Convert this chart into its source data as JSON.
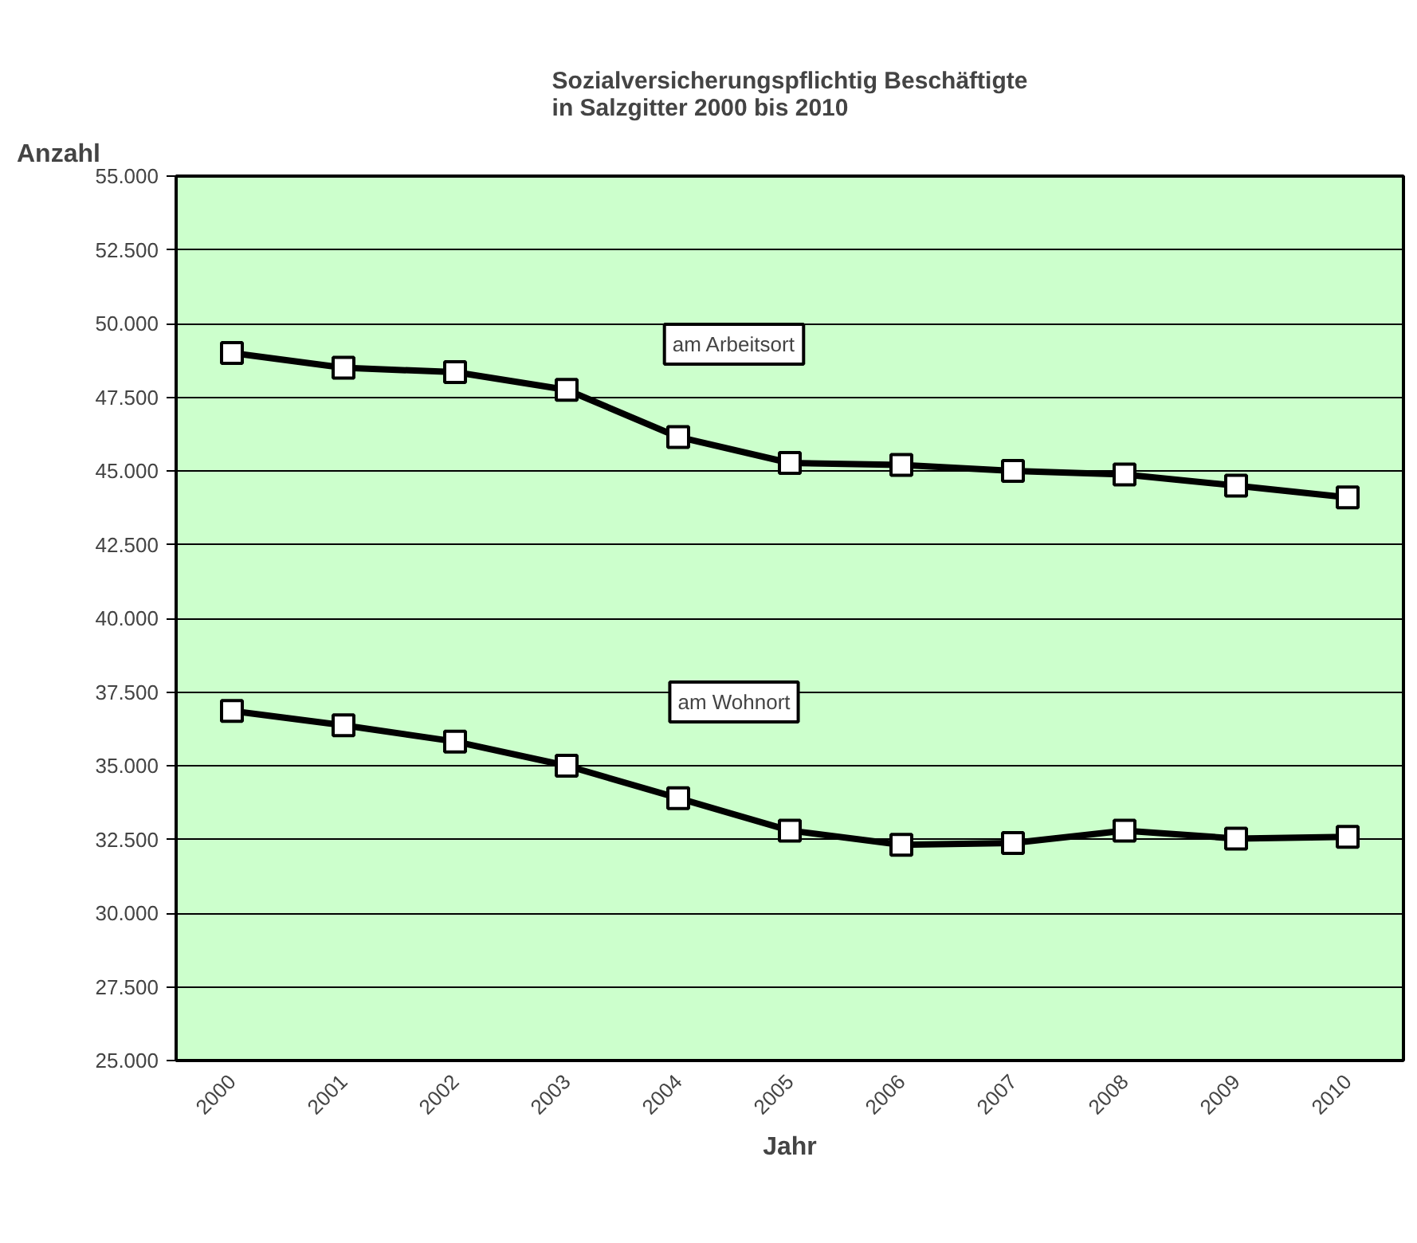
{
  "chart_data": {
    "type": "line",
    "title": "Sozialversicherungspflichtig Beschäftigte\nin Salzgitter 2000 bis 2010",
    "xlabel": "Jahr",
    "ylabel": "Anzahl",
    "categories": [
      "2000",
      "2001",
      "2002",
      "2003",
      "2004",
      "2005",
      "2006",
      "2007",
      "2008",
      "2009",
      "2010"
    ],
    "series": [
      {
        "name": "am Arbeitsort",
        "color": "#000000",
        "values": [
          49000,
          48500,
          48350,
          47750,
          46150,
          45270,
          45200,
          45000,
          44880,
          44500,
          44100
        ]
      },
      {
        "name": "am Wohnort",
        "color": "#000000",
        "values": [
          36860,
          36370,
          35820,
          35000,
          33900,
          32800,
          32320,
          32380,
          32800,
          32530,
          32590
        ]
      }
    ],
    "ylim": [
      25000,
      55000
    ],
    "yticks": [
      {
        "value": 25000,
        "label": "25.000"
      },
      {
        "value": 27500,
        "label": "27.500"
      },
      {
        "value": 30000,
        "label": "30.000"
      },
      {
        "value": 32500,
        "label": "32.500"
      },
      {
        "value": 35000,
        "label": "35.000"
      },
      {
        "value": 37500,
        "label": "37.500"
      },
      {
        "value": 40000,
        "label": "40.000"
      },
      {
        "value": 42500,
        "label": "42.500"
      },
      {
        "value": 45000,
        "label": "45.000"
      },
      {
        "value": 47500,
        "label": "47.500"
      },
      {
        "value": 50000,
        "label": "50.000"
      },
      {
        "value": 52500,
        "label": "52.500"
      },
      {
        "value": 55000,
        "label": "55.000"
      }
    ],
    "grid": "y",
    "marker": "square",
    "line_style": "solid"
  }
}
